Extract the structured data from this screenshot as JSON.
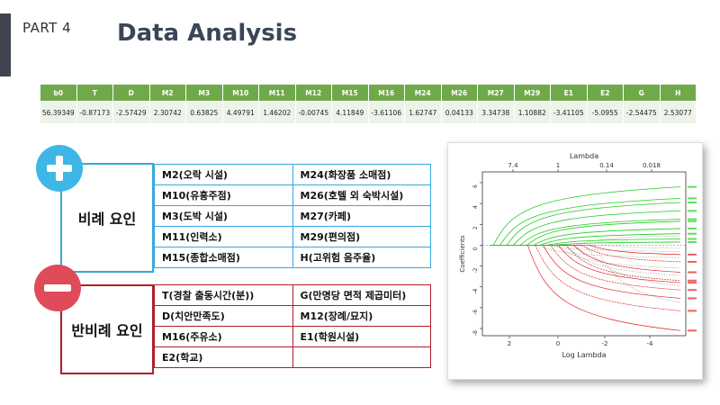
{
  "header": {
    "part_label": "PART  4",
    "title": "Data Analysis"
  },
  "coefficients": {
    "columns": [
      "b0",
      "T",
      "D",
      "M2",
      "M3",
      "M10",
      "M11",
      "M12",
      "M15",
      "M16",
      "M24",
      "M26",
      "M27",
      "M29",
      "E1",
      "E2",
      "G",
      "H"
    ],
    "values": [
      "56.39349",
      "-0.87173",
      "-2.57429",
      "2.30742",
      "0.63825",
      "4.49791",
      "1.46202",
      "-0.00745",
      "4.11849",
      "-3.61106",
      "1.62747",
      "0.04133",
      "3.34738",
      "1.10882",
      "-3.41105",
      "-5.0955",
      "-2.54475",
      "2.53077"
    ]
  },
  "positive": {
    "label": "비례 요인",
    "rows": [
      [
        "M2(오락 시설)",
        "M24(화장품 소매점)"
      ],
      [
        "M10(유흥주점)",
        "M26(호텔 외 숙박시설)"
      ],
      [
        "M3(도박 시설)",
        "M27(카페)"
      ],
      [
        "M11(인력소)",
        "M29(편의점)"
      ],
      [
        "M15(종합소매점)",
        "H(고위험 음주율)"
      ]
    ]
  },
  "negative": {
    "label": "반비례 요인",
    "rows": [
      [
        "T(경찰 출동시간(분))",
        "G(만명당 면적 제곱미터)"
      ],
      [
        "D(치안만족도)",
        "M12(장례/묘지)"
      ],
      [
        "M16(주유소)",
        "E1(학원시설)"
      ],
      [
        "E2(학교)",
        ""
      ]
    ]
  },
  "plot": {
    "top_axis_label": "Lambda",
    "top_ticks": [
      "7.4",
      "1",
      "0.14",
      "0.018"
    ],
    "bottom_axis_label": "Log Lambda",
    "bottom_ticks": [
      "2",
      "0",
      "-2",
      "-4"
    ],
    "y_axis_label": "Coefficients",
    "y_ticks": [
      "6",
      "4",
      "2",
      "0",
      "-2",
      "-4",
      "-6",
      "-8"
    ],
    "colors": {
      "positive_paths": "#22cc22",
      "negative_paths": "#e02020",
      "neutral_paths": "#999999"
    }
  }
}
